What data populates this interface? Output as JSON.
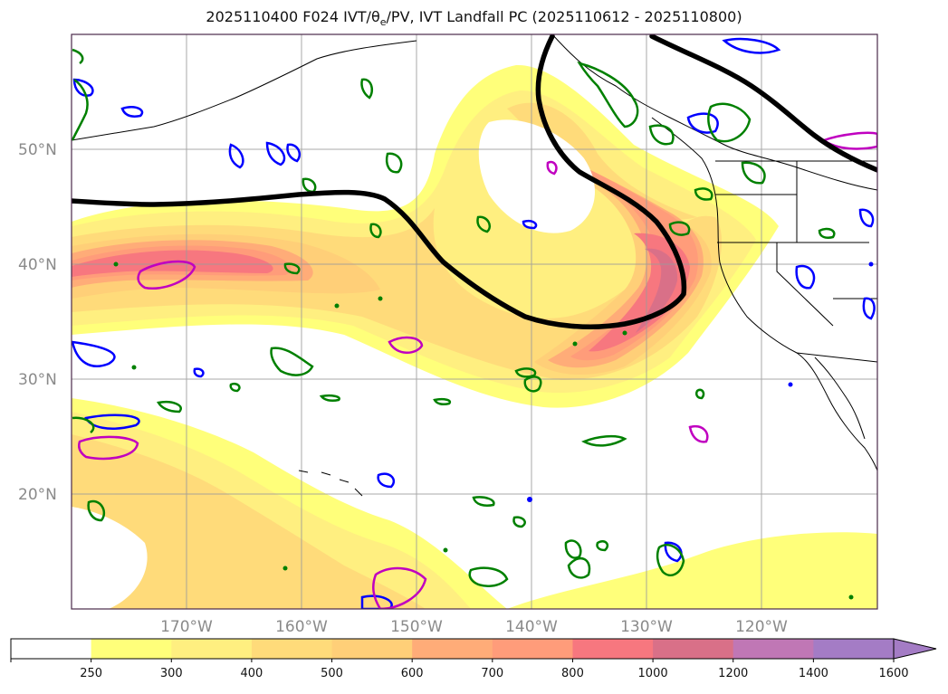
{
  "title": {
    "prefix": "2025110400 F024 IVT/",
    "theta": "θ",
    "theta_sub": "e",
    "suffix": "/PV, IVT Landfall PC (2025110612 - 2025110800)"
  },
  "lat_labels": [
    "50°N",
    "40°N",
    "30°N",
    "20°N"
  ],
  "lon_labels": [
    "170°W",
    "160°W",
    "150°W",
    "140°W",
    "130°W",
    "120°W"
  ],
  "colorbar": {
    "units_hint": "IVT",
    "ticks": [
      "250",
      "300",
      "400",
      "500",
      "600",
      "700",
      "800",
      "1000",
      "1200",
      "1400",
      "1600"
    ],
    "colors": [
      "#ffffff",
      "#ffff7a",
      "#ffef80",
      "#ffdb7a",
      "#ffcf78",
      "#ffac78",
      "#ff9c7a",
      "#f7777f",
      "#d97088",
      "#c077b5",
      "#a47cc5"
    ]
  },
  "chart_data": {
    "type": "map",
    "projection": "PlateCarree",
    "extent_lon": [
      -180,
      -110
    ],
    "extent_lat": [
      10,
      60
    ],
    "gridlines": true,
    "fields": {
      "filled": "IVT (kg m-1 s-1)",
      "contour_black": "IVT Landfall PC",
      "contour_green": "theta_e",
      "contour_blue_magenta": "PV"
    },
    "levels": [
      250,
      300,
      400,
      500,
      600,
      700,
      800,
      1000,
      1200,
      1400,
      1600
    ]
  },
  "colors": {
    "pc_contour": "#000000",
    "theta_e": "#008000",
    "pv_blue": "#0000ff",
    "pv_magenta": "#c000c0",
    "coast": "#000000",
    "grid": "#9a9a9a"
  }
}
